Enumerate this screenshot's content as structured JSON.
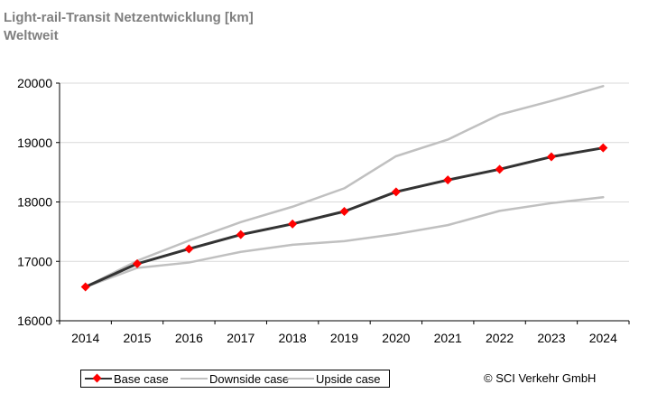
{
  "title": "Light-rail-Transit Netzentwicklung  [km]",
  "subtitle": "Weltweit",
  "copyright": "© SCI Verkehr GmbH",
  "chart_data": {
    "type": "line",
    "title": "Light-rail-Transit Netzentwicklung  [km]",
    "subtitle": "Weltweit",
    "categories": [
      "2014",
      "2015",
      "2016",
      "2017",
      "2018",
      "2019",
      "2020",
      "2021",
      "2022",
      "2023",
      "2024"
    ],
    "ylim": [
      16000,
      20000
    ],
    "yticks": [
      16000,
      17000,
      18000,
      19000,
      20000
    ],
    "grid": true,
    "legend_position": "bottom-left",
    "series": [
      {
        "name": "Base case",
        "color": "#333333",
        "marker": "diamond",
        "marker_color": "#ff0000",
        "values": [
          16570,
          16960,
          17210,
          17450,
          17630,
          17840,
          18170,
          18370,
          18550,
          18760,
          18910
        ]
      },
      {
        "name": "Downside case",
        "color": "#c0c0c0",
        "values": [
          16570,
          16890,
          16980,
          17160,
          17280,
          17340,
          17460,
          17610,
          17850,
          17980,
          18080
        ]
      },
      {
        "name": "Upside case",
        "color": "#c0c0c0",
        "values": [
          16570,
          17010,
          17350,
          17660,
          17920,
          18230,
          18770,
          19050,
          19470,
          19700,
          19950
        ]
      }
    ]
  }
}
